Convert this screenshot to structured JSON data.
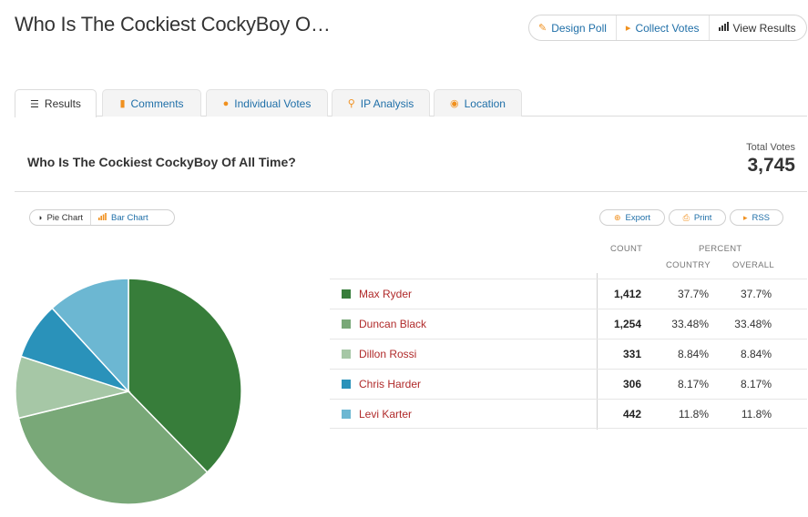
{
  "header": {
    "title": "Who Is The Cockiest CockyBoy O…",
    "actions": [
      {
        "label": "Design Poll",
        "icon": "pencil-icon"
      },
      {
        "label": "Collect Votes",
        "icon": "megaphone-icon"
      },
      {
        "label": "View Results",
        "icon": "bar-chart-icon"
      }
    ]
  },
  "tabs": [
    {
      "label": "Results",
      "icon": "list-icon",
      "active": true
    },
    {
      "label": "Comments",
      "icon": "comment-icon",
      "active": false
    },
    {
      "label": "Individual Votes",
      "icon": "user-icon",
      "active": false
    },
    {
      "label": "IP Analysis",
      "icon": "search-icon",
      "active": false
    },
    {
      "label": "Location",
      "icon": "location-pin-icon",
      "active": false
    }
  ],
  "poll": {
    "question": "Who Is The Cockiest CockyBoy Of All Time?",
    "total_label": "Total Votes",
    "total_value": "3,745"
  },
  "chart_toggle": {
    "pie_label": "Pie Chart",
    "bar_label": "Bar Chart"
  },
  "utilities": {
    "export_label": "Export",
    "print_label": "Print",
    "rss_label": "RSS"
  },
  "table_headers": {
    "count": "COUNT",
    "percent": "PERCENT",
    "country": "COUNTRY",
    "overall": "OVERALL"
  },
  "colors": {
    "accent_blue": "#1f6fa8",
    "accent_orange": "#f0901e",
    "name_red": "#b02a2a"
  },
  "chart_data": {
    "type": "pie",
    "categories": [
      "Max Ryder",
      "Duncan Black",
      "Dillon Rossi",
      "Chris Harder",
      "Levi Karter"
    ],
    "values": [
      1412,
      1254,
      331,
      306,
      442
    ],
    "colors": [
      "#377d3a",
      "#79a878",
      "#a6c7a6",
      "#2a92ba",
      "#6cb7d2"
    ]
  },
  "results": [
    {
      "name": "Max Ryder",
      "count": "1,412",
      "percent_country": "37.7%",
      "percent_overall": "37.7%",
      "color": "#377d3a"
    },
    {
      "name": "Duncan Black",
      "count": "1,254",
      "percent_country": "33.48%",
      "percent_overall": "33.48%",
      "color": "#79a878"
    },
    {
      "name": "Dillon Rossi",
      "count": "331",
      "percent_country": "8.84%",
      "percent_overall": "8.84%",
      "color": "#a6c7a6"
    },
    {
      "name": "Chris Harder",
      "count": "306",
      "percent_country": "8.17%",
      "percent_overall": "8.17%",
      "color": "#2a92ba"
    },
    {
      "name": "Levi Karter",
      "count": "442",
      "percent_country": "11.8%",
      "percent_overall": "11.8%",
      "color": "#6cb7d2"
    }
  ]
}
